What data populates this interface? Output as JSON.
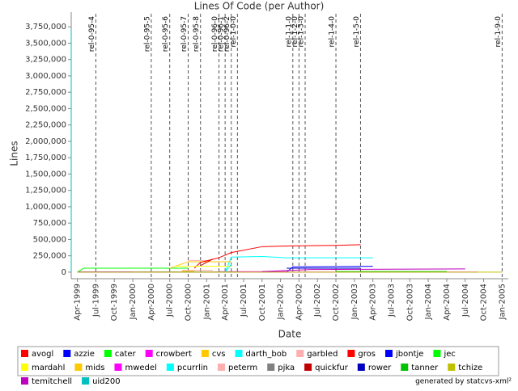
{
  "chart_data": {
    "type": "line",
    "title": "Lines Of Code (per Author)",
    "xlabel": "Date",
    "ylabel": "Lines",
    "footer": "generated by statcvs-xml²",
    "xlim": [
      "1999-03",
      "2005-02"
    ],
    "xticks": [
      {
        "value": "1999-04",
        "label": "Apr-1999"
      },
      {
        "value": "1999-07",
        "label": "Jul-1999"
      },
      {
        "value": "1999-10",
        "label": "Oct-1999"
      },
      {
        "value": "2000-01",
        "label": "Jan-2000"
      },
      {
        "value": "2000-04",
        "label": "Apr-2000"
      },
      {
        "value": "2000-07",
        "label": "Jul-2000"
      },
      {
        "value": "2000-10",
        "label": "Oct-2000"
      },
      {
        "value": "2001-01",
        "label": "Jan-2001"
      },
      {
        "value": "2001-04",
        "label": "Apr-2001"
      },
      {
        "value": "2001-07",
        "label": "Jul-2001"
      },
      {
        "value": "2001-10",
        "label": "Oct-2001"
      },
      {
        "value": "2002-01",
        "label": "Jan-2002"
      },
      {
        "value": "2002-04",
        "label": "Apr-2002"
      },
      {
        "value": "2002-07",
        "label": "Jul-2002"
      },
      {
        "value": "2002-10",
        "label": "Oct-2002"
      },
      {
        "value": "2003-01",
        "label": "Jan-2003"
      },
      {
        "value": "2003-04",
        "label": "Apr-2003"
      },
      {
        "value": "2003-07",
        "label": "Jul-2003"
      },
      {
        "value": "2003-10",
        "label": "Oct-2003"
      },
      {
        "value": "2004-01",
        "label": "Jan-2004"
      },
      {
        "value": "2004-04",
        "label": "Apr-2004"
      },
      {
        "value": "2004-07",
        "label": "Jul-2004"
      },
      {
        "value": "2004-10",
        "label": "Oct-2004"
      },
      {
        "value": "2005-01",
        "label": "Jan-2005"
      }
    ],
    "ylim": [
      -100000,
      3975000
    ],
    "yticks": [
      0,
      {
        "value": 250000,
        "label": "250,000"
      },
      {
        "value": 500000,
        "label": "500,000"
      },
      {
        "value": 750000,
        "label": "750,000"
      },
      {
        "value": 1000000,
        "label": "1,000,000"
      },
      {
        "value": 1250000,
        "label": "1,250,000"
      },
      {
        "value": 1500000,
        "label": "1,500,000"
      },
      {
        "value": 1750000,
        "label": "1,750,000"
      },
      {
        "value": 2000000,
        "label": "2,000,000"
      },
      {
        "value": 2250000,
        "label": "2,250,000"
      },
      {
        "value": 2500000,
        "label": "2,500,000"
      },
      {
        "value": 2750000,
        "label": "2,750,000"
      },
      {
        "value": 3000000,
        "label": "3,000,000"
      },
      {
        "value": 3250000,
        "label": "3,250,000"
      },
      {
        "value": 3500000,
        "label": "3,500,000"
      },
      {
        "value": 3750000,
        "label": "3,750,000"
      }
    ],
    "markers": [
      {
        "label": "rel-0-95-4",
        "x": "1999-07"
      },
      {
        "label": "rel-0-95-5",
        "x": "2000-04"
      },
      {
        "label": "rel-0-95-6",
        "x": "2000-07"
      },
      {
        "label": "rel-0-95-7",
        "x": "2000-10"
      },
      {
        "label": "rel-0-95-8",
        "x": "2000-12"
      },
      {
        "label": "rel-0-96-0",
        "x": "2001-03"
      },
      {
        "label": "rel-0-96-1",
        "x": "2001-04"
      },
      {
        "label": "rel-0-96-2",
        "x": "2001-05"
      },
      {
        "label": "rel-1-0-0",
        "x": "2001-06"
      },
      {
        "label": "rel-1-1-0",
        "x": "2002-03"
      },
      {
        "label": "rel-1-2-0",
        "x": "2002-04"
      },
      {
        "label": "rel-1-3-0",
        "x": "2002-05"
      },
      {
        "label": "rel-1-4-0",
        "x": "2002-10"
      },
      {
        "label": "rel-1-5-0",
        "x": "2003-02"
      },
      {
        "label": "rel-1-9-0",
        "x": "2005-01"
      }
    ],
    "series": [
      {
        "name": "avogl",
        "color": "#ff0000",
        "x": [
          "1999-04",
          "2000-12"
        ],
        "values": [
          5000,
          5000
        ]
      },
      {
        "name": "azzie",
        "color": "#0000ff",
        "x": [
          "1999-04",
          "2001-03"
        ],
        "values": [
          3000,
          3000
        ]
      },
      {
        "name": "cater",
        "color": "#00ff00",
        "x": [
          "1999-04",
          "1999-05",
          "2000-10"
        ],
        "values": [
          0,
          60000,
          60000
        ]
      },
      {
        "name": "crowbert",
        "color": "#ff00ff",
        "x": [
          "2001-03",
          "2002-02"
        ],
        "values": [
          8000,
          8000
        ]
      },
      {
        "name": "cvs",
        "color": "#ffc800",
        "x": [
          "2000-07",
          "2000-10",
          "2001-05"
        ],
        "values": [
          60000,
          160000,
          160000
        ]
      },
      {
        "name": "darth_bob",
        "color": "#00ffff",
        "x": [
          "2001-04",
          "2001-05",
          "2001-10",
          "2002-02",
          "2003-04"
        ],
        "values": [
          0,
          230000,
          240000,
          220000,
          220000
        ]
      },
      {
        "name": "garbled",
        "color": "#ffafaf",
        "x": [
          "2000-10",
          "2001-01"
        ],
        "values": [
          180000,
          180000
        ]
      },
      {
        "name": "gros",
        "color": "#ff0000",
        "x": [
          "2000-11",
          "2000-12",
          "2001-03",
          "2001-04",
          "2001-05",
          "2001-10",
          "2002-02",
          "2002-10",
          "2003-02"
        ],
        "values": [
          60000,
          150000,
          220000,
          260000,
          300000,
          390000,
          400000,
          410000,
          420000
        ]
      },
      {
        "name": "jbontje",
        "color": "#0000ff",
        "x": [
          "2002-02",
          "2002-03",
          "2003-04"
        ],
        "values": [
          0,
          80000,
          90000
        ]
      },
      {
        "name": "jec",
        "color": "#00ff00",
        "x": [
          "2000-01",
          "2001-06"
        ],
        "values": [
          4000,
          4000
        ]
      },
      {
        "name": "mardahl",
        "color": "#ffff00",
        "x": [
          "2000-08",
          "2001-05"
        ],
        "values": [
          90000,
          90000
        ]
      },
      {
        "name": "mids",
        "color": "#ffc800",
        "x": [
          "2000-09",
          "2000-11"
        ],
        "values": [
          20000,
          20000
        ]
      },
      {
        "name": "mwedel",
        "color": "#ff00ff",
        "x": [
          "1999-04",
          "2004-09"
        ],
        "values": [
          2000,
          2000
        ]
      },
      {
        "name": "pcurrlin",
        "color": "#00ffff",
        "x": [
          "2001-04",
          "2001-05"
        ],
        "values": [
          0,
          120000
        ]
      },
      {
        "name": "peterm",
        "color": "#ffafaf",
        "x": [
          "2000-09",
          "2001-02"
        ],
        "values": [
          30000,
          30000
        ]
      },
      {
        "name": "pjka",
        "color": "#808080",
        "x": [
          "2000-06",
          "2001-06"
        ],
        "values": [
          2000,
          2000
        ]
      },
      {
        "name": "quickfur",
        "color": "#c00000",
        "x": [
          "2000-12",
          "2001-02"
        ],
        "values": [
          100000,
          200000
        ]
      },
      {
        "name": "rower",
        "color": "#0000c0",
        "x": [
          "2002-02",
          "2003-02"
        ],
        "values": [
          60000,
          60000
        ]
      },
      {
        "name": "tanner",
        "color": "#00c000",
        "x": [
          "2002-10",
          "2004-04"
        ],
        "values": [
          10000,
          10000
        ]
      },
      {
        "name": "tchize",
        "color": "#c0c000",
        "x": [
          "1999-04",
          "2005-01"
        ],
        "values": [
          0,
          0
        ]
      },
      {
        "name": "temitchell",
        "color": "#c000c0",
        "x": [
          "2001-10",
          "2002-06",
          "2004-07"
        ],
        "values": [
          10000,
          40000,
          50000
        ]
      },
      {
        "name": "uid200",
        "color": "#00c0c0",
        "x": [
          "1999-03",
          "1999-03"
        ],
        "values": [
          0,
          3720000
        ]
      }
    ]
  }
}
